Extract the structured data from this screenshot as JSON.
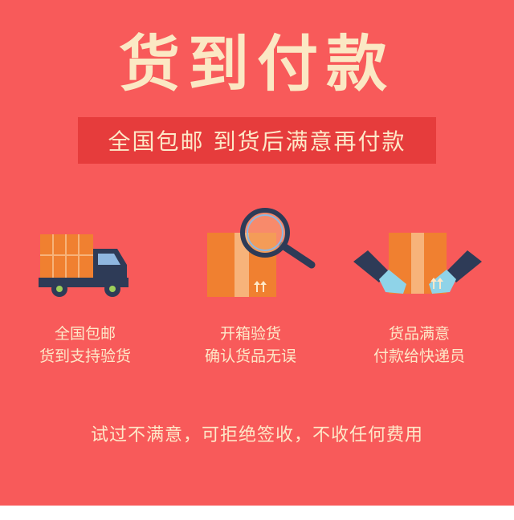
{
  "title": "货到付款",
  "subtitle": "全国包邮 到货后满意再付款",
  "features": [
    {
      "icon": "delivery-truck-icon",
      "line1": "全国包邮",
      "line2": "货到支持验货"
    },
    {
      "icon": "inspect-box-magnifier-icon",
      "line1": "开箱验货",
      "line2": "确认货品无误"
    },
    {
      "icon": "hands-holding-box-icon",
      "line1": "货品满意",
      "line2": "付款给快递员"
    }
  ],
  "note": "试过不满意，可拒绝签收，不收任何费用",
  "colors": {
    "background": "#f85a5a",
    "band": "#e63c3c",
    "title_text": "#fbe8c4",
    "box_orange": "#f08030",
    "navy": "#2e3b57"
  }
}
